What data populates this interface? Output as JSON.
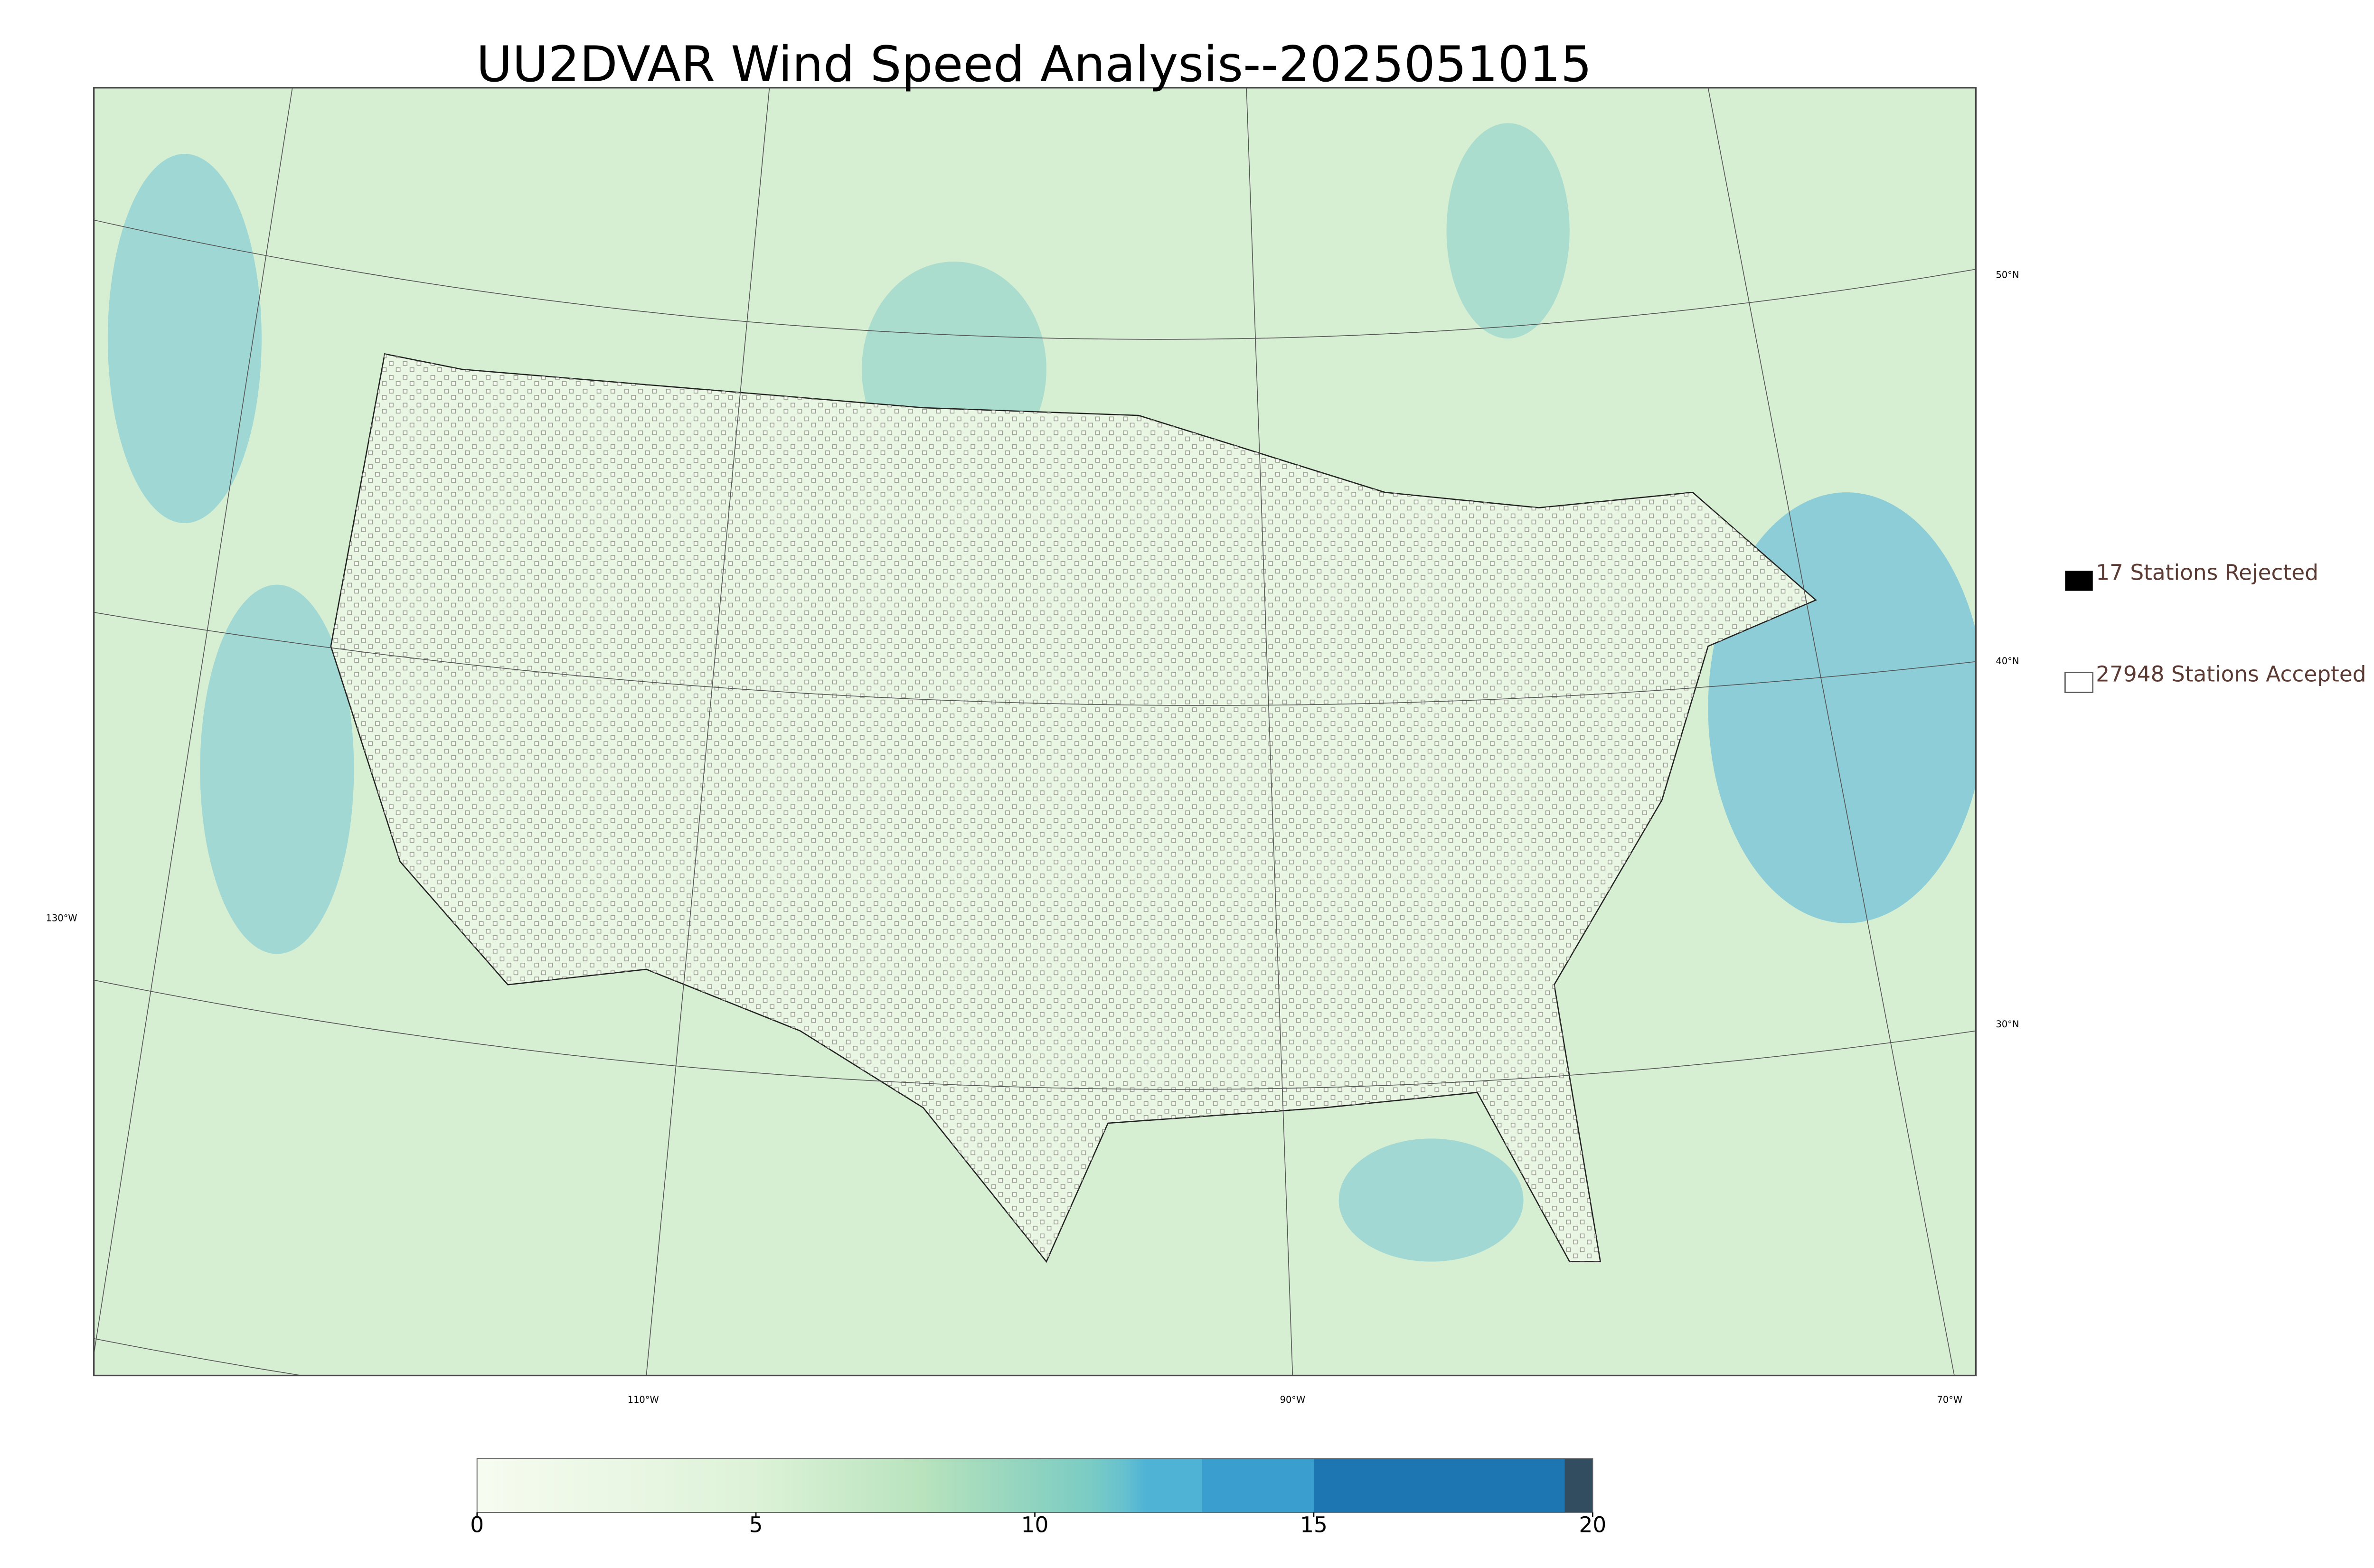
{
  "map": {
    "title": "UU2DVAR Wind Speed Analysis--2025051015",
    "legend": [
      "17 Stations Rejected",
      "27948 Stations Accepted"
    ],
    "lon_labels": [
      "130°W",
      "110°W",
      "90°W",
      "70°W"
    ],
    "lat_labels": [
      "50°N",
      "40°N",
      "30°N"
    ]
  },
  "chart_data": {
    "type": "colorbar",
    "xlim": [
      0,
      20
    ],
    "xticks": [
      0,
      5,
      10,
      15,
      20
    ]
  }
}
